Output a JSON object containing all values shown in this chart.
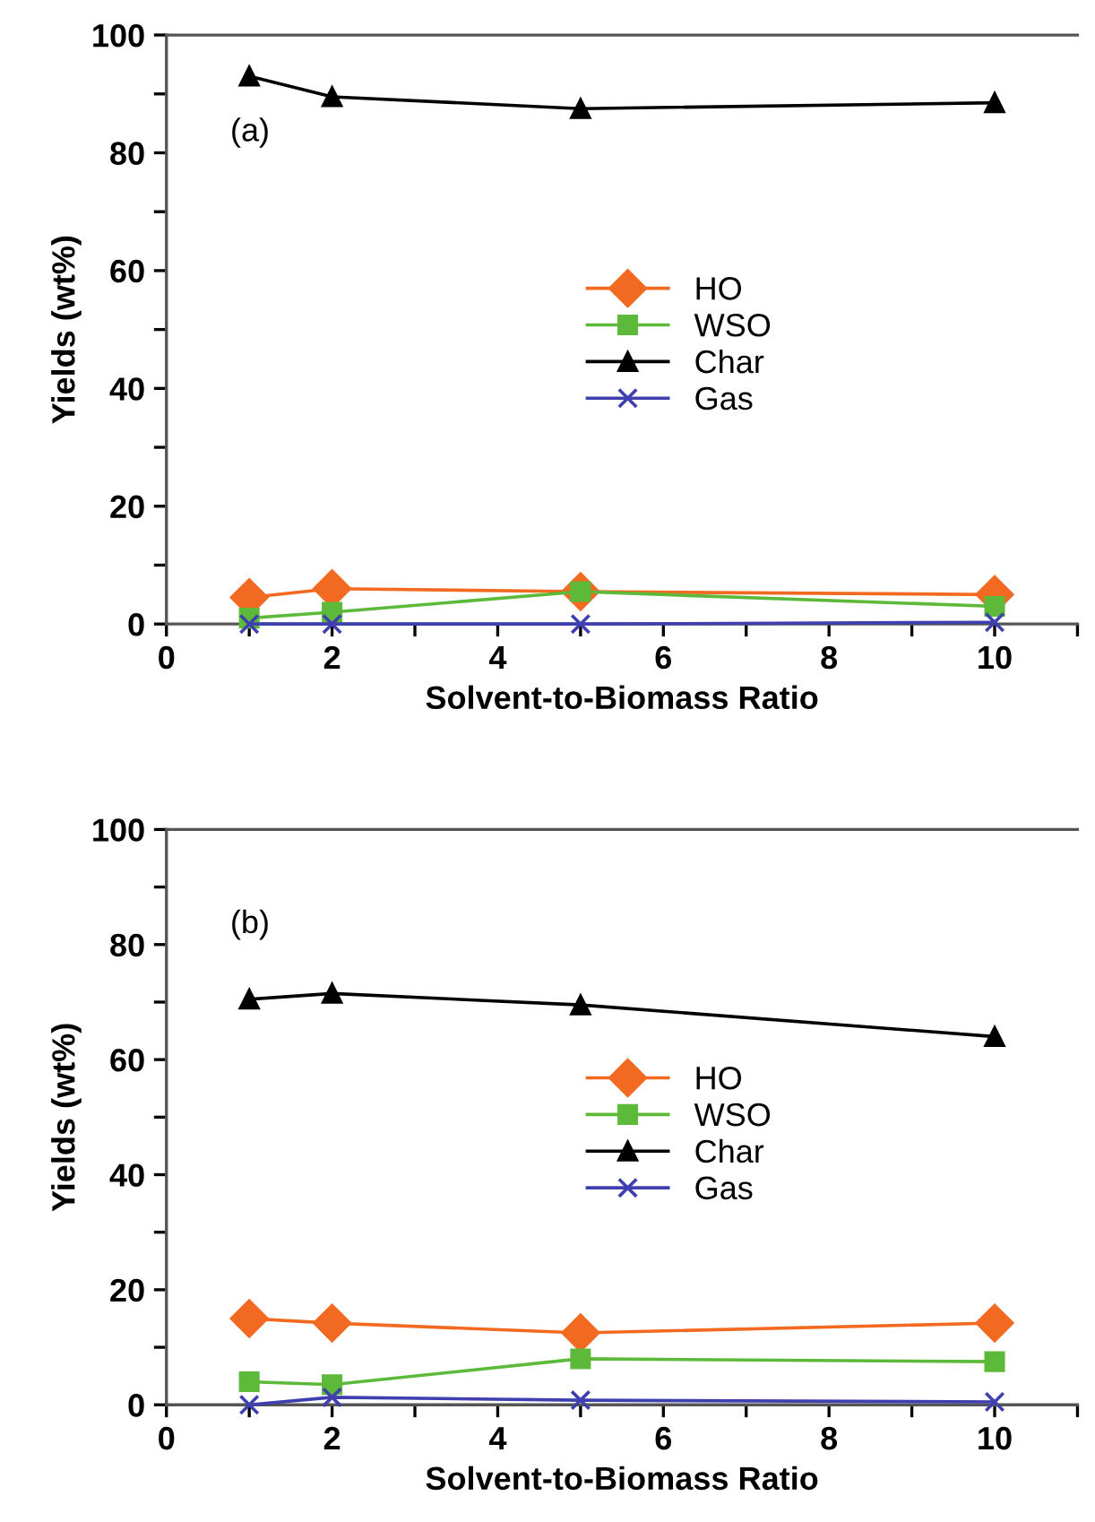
{
  "chart_data": [
    {
      "type": "line",
      "annotations": [
        "(a)"
      ],
      "xlabel": "Solvent-to-Biomass Ratio",
      "ylabel": "Yields (wt%)",
      "x": [
        1,
        2,
        5,
        10
      ],
      "xlim": [
        0,
        11
      ],
      "ylim": [
        0,
        100
      ],
      "xticks": [
        0,
        {
          "value": 1,
          "label": null
        },
        2,
        {
          "value": 3,
          "label": null
        },
        4,
        {
          "value": 5,
          "label": null
        },
        6,
        {
          "value": 7,
          "label": null
        },
        8,
        {
          "value": 9,
          "label": null
        },
        10,
        {
          "value": 11,
          "label": null
        }
      ],
      "yticks": [
        0,
        {
          "value": 10,
          "label": null
        },
        20,
        {
          "value": 30,
          "label": null
        },
        40,
        {
          "value": 50,
          "label": null
        },
        60,
        {
          "value": 70,
          "label": null
        },
        80,
        {
          "value": 90,
          "label": null
        },
        100
      ],
      "grid": false,
      "legend": "center",
      "series": [
        {
          "name": "HO",
          "color": "#f26a21",
          "marker": "diamond",
          "values": [
            4.5,
            6,
            5.5,
            5
          ]
        },
        {
          "name": "WSO",
          "color": "#5cb93a",
          "marker": "square",
          "values": [
            1,
            2,
            5.5,
            3
          ]
        },
        {
          "name": "Char",
          "color": "#000000",
          "marker": "triangle",
          "values": [
            93,
            89.5,
            87.5,
            88.5
          ]
        },
        {
          "name": "Gas",
          "color": "#3f3fb0",
          "marker": "cross",
          "values": [
            0,
            0,
            0,
            0.3
          ]
        }
      ]
    },
    {
      "type": "line",
      "annotations": [
        "(b)"
      ],
      "xlabel": "Solvent-to-Biomass Ratio",
      "ylabel": "Yields (wt%)",
      "x": [
        1,
        2,
        5,
        10
      ],
      "xlim": [
        0,
        11
      ],
      "ylim": [
        0,
        100
      ],
      "xticks": [
        0,
        {
          "value": 1,
          "label": null
        },
        2,
        {
          "value": 3,
          "label": null
        },
        4,
        {
          "value": 5,
          "label": null
        },
        6,
        {
          "value": 7,
          "label": null
        },
        8,
        {
          "value": 9,
          "label": null
        },
        10,
        {
          "value": 11,
          "label": null
        }
      ],
      "yticks": [
        0,
        {
          "value": 10,
          "label": null
        },
        20,
        {
          "value": 30,
          "label": null
        },
        40,
        {
          "value": 50,
          "label": null
        },
        60,
        {
          "value": 70,
          "label": null
        },
        80,
        {
          "value": 90,
          "label": null
        },
        100
      ],
      "grid": false,
      "legend": "center",
      "series": [
        {
          "name": "HO",
          "color": "#f26a21",
          "marker": "diamond",
          "values": [
            15,
            14.2,
            12.5,
            14.2
          ]
        },
        {
          "name": "WSO",
          "color": "#5cb93a",
          "marker": "square",
          "values": [
            4,
            3.5,
            8,
            7.5
          ]
        },
        {
          "name": "Char",
          "color": "#000000",
          "marker": "triangle",
          "values": [
            70.5,
            71.5,
            69.5,
            64
          ]
        },
        {
          "name": "Gas",
          "color": "#3f3fb0",
          "marker": "cross",
          "values": [
            0,
            1.3,
            0.8,
            0.5
          ]
        }
      ]
    }
  ]
}
